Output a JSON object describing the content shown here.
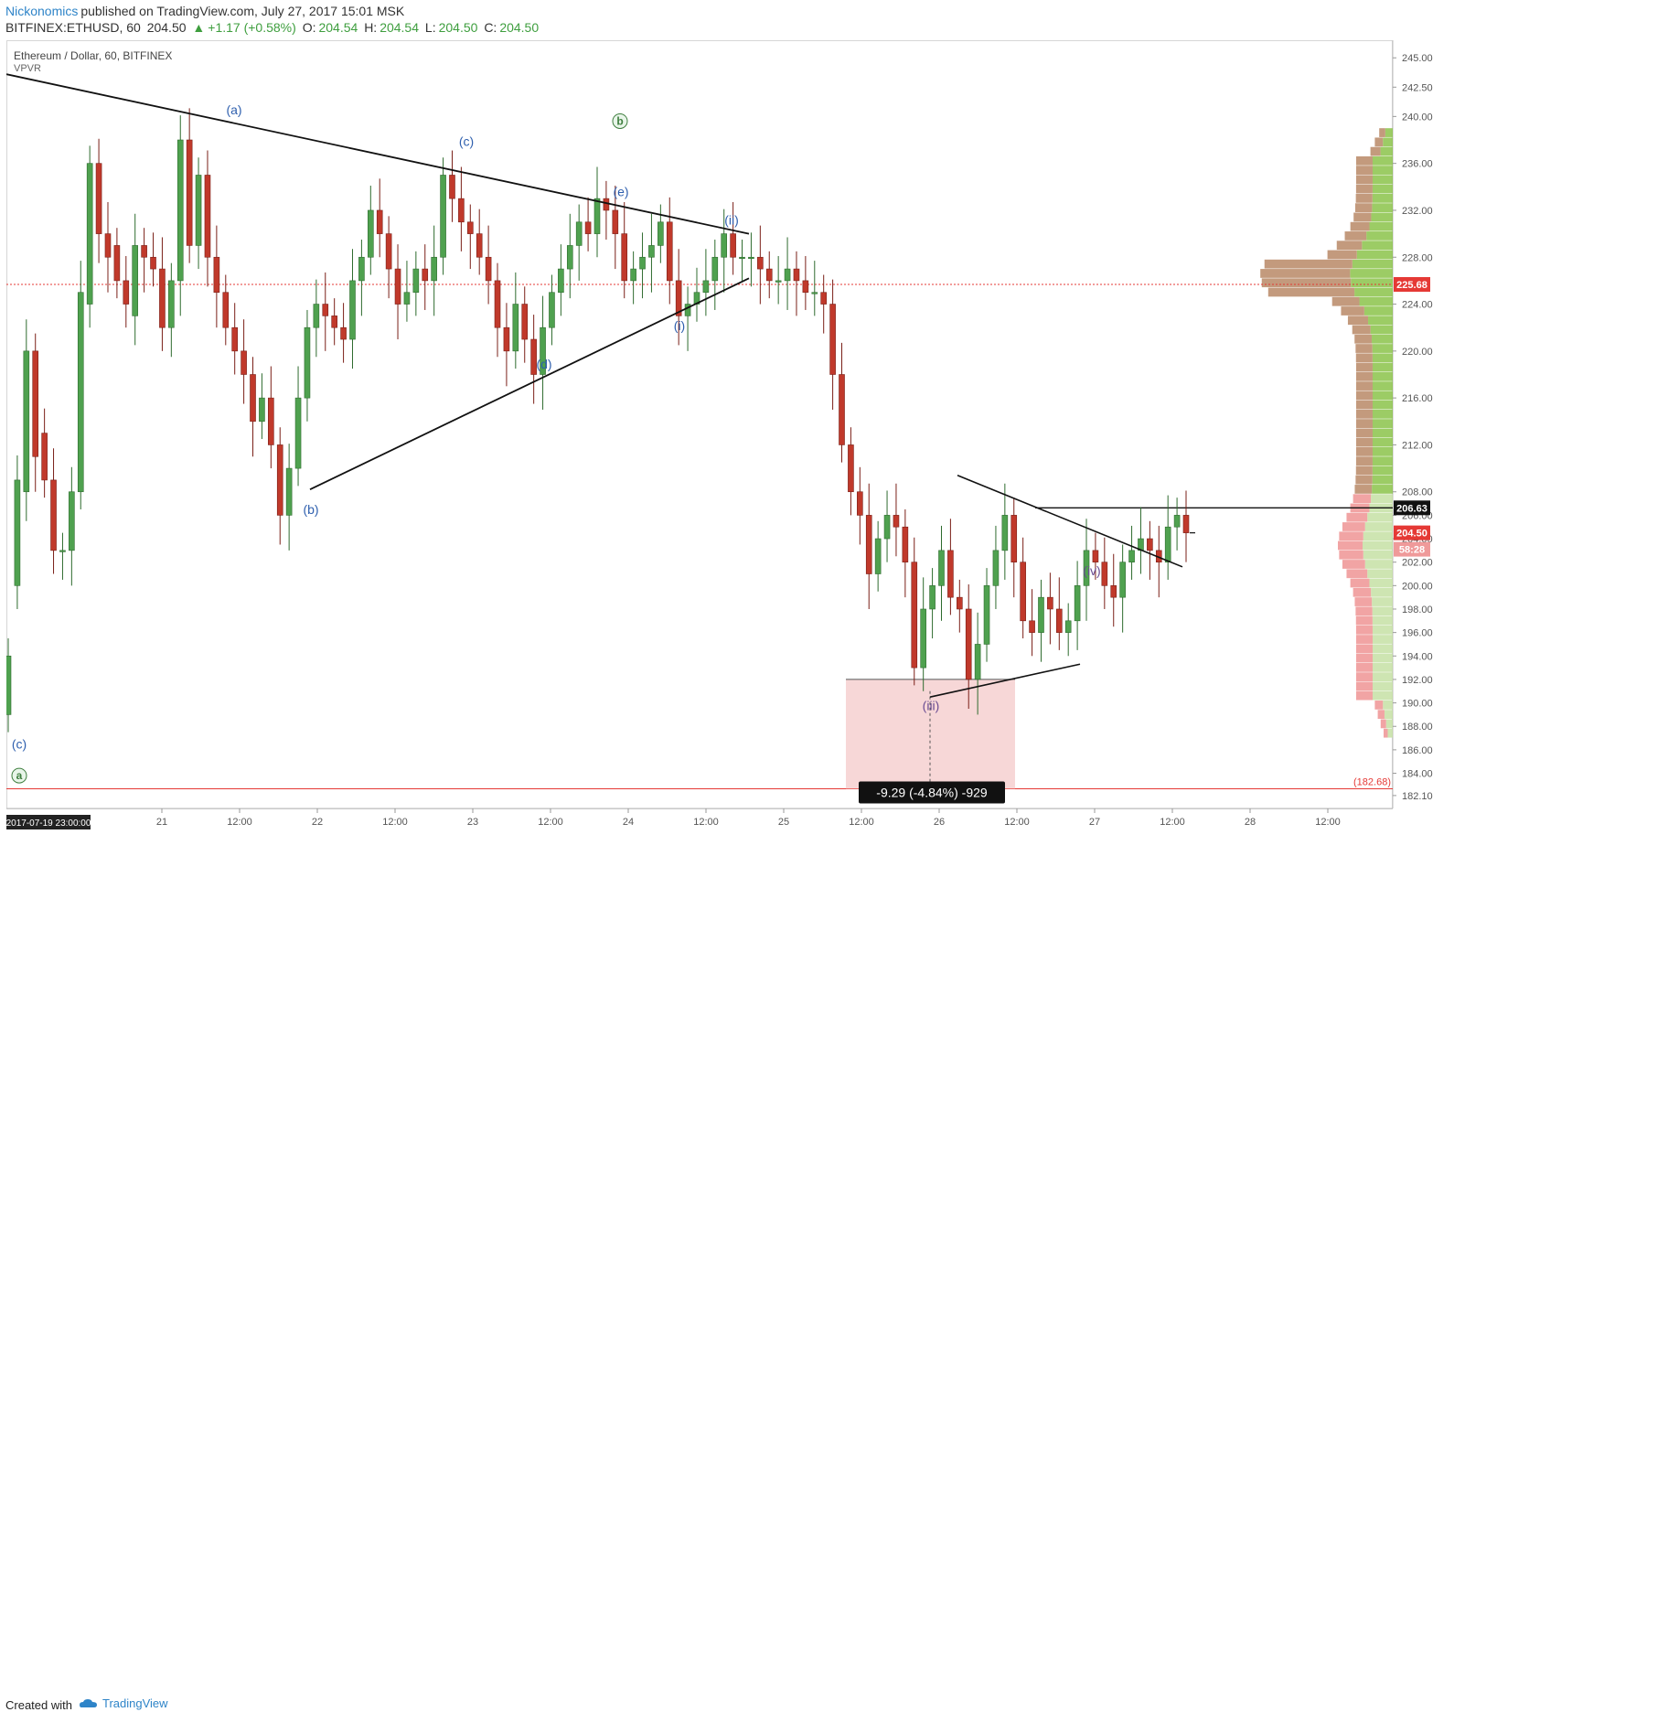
{
  "header": {
    "author": "Nickonomics",
    "published_text": "published on TradingView.com, July 27, 2017 15:01 MSK",
    "symbol": "BITFINEX:ETHUSD, 60",
    "last": "204.50",
    "change": "+1.17 (+0.58%)",
    "o_label": "O:",
    "o_value": "204.54",
    "h_label": "H:",
    "h_value": "204.54",
    "l_label": "L:",
    "l_value": "204.50",
    "c_label": "C:",
    "c_value": "204.50"
  },
  "legend": {
    "symbol_title": "Ethereum / Dollar, 60, BITFINEX",
    "indicator": "VPVR"
  },
  "footer": {
    "created_with": "Created with",
    "brand": "TradingView"
  },
  "colors": {
    "up": "#4fa14f",
    "down": "#c0392b",
    "wave_blue": "#2e5fae",
    "wave_purple": "#6a4c93",
    "circle_green": "#3e7e3e",
    "price_line_red": "#e53935",
    "profile_up": "#8bc34a",
    "profile_down": "#a0522d"
  },
  "chart_data": {
    "type": "candlestick",
    "title": "Ethereum / Dollar, 60, BITFINEX",
    "ylim": [
      181,
      246.5
    ],
    "y_ticks": [
      "186.00",
      "188.00",
      "190.00",
      "192.00",
      "194.00",
      "196.00",
      "198.00",
      "200.00",
      "202.00",
      "204.00",
      "206.00",
      "208.00",
      "212.00",
      "216.00",
      "220.00",
      "224.00",
      "228.00",
      "232.00",
      "236.00",
      "240.00",
      "242.50",
      "245.00",
      "182.10",
      "184.00"
    ],
    "x_ticks": [
      "21",
      "12:00",
      "22",
      "12:00",
      "23",
      "12:00",
      "24",
      "12:00",
      "25",
      "12:00",
      "26",
      "12:00",
      "27",
      "12:00",
      "28",
      "12:00"
    ],
    "crosshair_date": "2017-07-19 23:00:00",
    "price_labels": {
      "current": "225.68",
      "resistance": "206.63",
      "last": "204.50",
      "countdown": "58:28",
      "low_level": "(182.68)"
    },
    "measure_label": "-9.29 (-4.84%) -929",
    "wave_labels": {
      "left_c": "(c)",
      "a_circle": "a",
      "a": "(a)",
      "b": "(b)",
      "c": "(c)",
      "d": "(d)",
      "e": "(e)",
      "b_circle": "b",
      "i": "(i)",
      "ii": "(ii)",
      "iii": "(iii)",
      "iv": "(iv)"
    },
    "closes": [
      194,
      209,
      220,
      211,
      209,
      203,
      203,
      208,
      225,
      236,
      230,
      228,
      226,
      224,
      229,
      228,
      227,
      222,
      226,
      238,
      229,
      235,
      228,
      225,
      222,
      220,
      218,
      214,
      216,
      212,
      206,
      210,
      216,
      222,
      224,
      223,
      222,
      221,
      226,
      228,
      232,
      230,
      227,
      224,
      225,
      227,
      226,
      228,
      235,
      233,
      231,
      230,
      228,
      226,
      222,
      220,
      224,
      221,
      218,
      222,
      225,
      227,
      229,
      231,
      230,
      233,
      232,
      230,
      226,
      227,
      228,
      229,
      231,
      226,
      223,
      224,
      225,
      226,
      228,
      230,
      228,
      228,
      228,
      227,
      226,
      226,
      227,
      226,
      225,
      225,
      224,
      218,
      212,
      208,
      206,
      201,
      204,
      206,
      205,
      202,
      193,
      198,
      200,
      203,
      199,
      198,
      192,
      195,
      200,
      203,
      206,
      202,
      197,
      196,
      199,
      198,
      196,
      197,
      200,
      203,
      202,
      200,
      199,
      202,
      203,
      204,
      203,
      202,
      205,
      206,
      204.5
    ],
    "opens": [
      189,
      200,
      208,
      220,
      213,
      209,
      203,
      203,
      208,
      224,
      236,
      230,
      229,
      226,
      223,
      229,
      228,
      227,
      222,
      226,
      238,
      229,
      235,
      228,
      225,
      222,
      220,
      218,
      214,
      216,
      212,
      206,
      210,
      216,
      222,
      224,
      223,
      222,
      221,
      226,
      228,
      232,
      230,
      227,
      224,
      225,
      227,
      226,
      228,
      235,
      233,
      231,
      230,
      228,
      226,
      222,
      220,
      224,
      221,
      218,
      222,
      225,
      227,
      229,
      231,
      230,
      233,
      232,
      230,
      226,
      227,
      228,
      229,
      231,
      226,
      223,
      224,
      225,
      226,
      228,
      230,
      228,
      228,
      228,
      227,
      226,
      226,
      227,
      226,
      225,
      225,
      224,
      218,
      212,
      208,
      206,
      201,
      204,
      206,
      205,
      202,
      193,
      198,
      200,
      203,
      199,
      198,
      192,
      195,
      200,
      203,
      206,
      202,
      197,
      196,
      199,
      198,
      196,
      197,
      200,
      203,
      202,
      200,
      199,
      202,
      203,
      204,
      203,
      202,
      205,
      206
    ]
  }
}
